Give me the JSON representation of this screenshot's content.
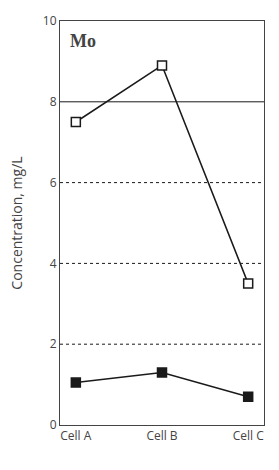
{
  "chart_data": {
    "type": "line",
    "title": "Mo",
    "ylabel": "Concentration, mg/L",
    "categories": [
      "Cell A",
      "Cell B",
      "Cell C"
    ],
    "series": [
      {
        "color": "#1a1a1a",
        "marker": "square-open",
        "values": [
          7.5,
          8.9,
          3.5
        ]
      },
      {
        "color": "#1a1a1a",
        "marker": "square",
        "values": [
          1.05,
          1.3,
          0.7
        ]
      }
    ],
    "ylim": [
      0,
      10
    ],
    "yticks": [
      0,
      2,
      4,
      6,
      8,
      10
    ],
    "grid": false,
    "hlines": [
      {
        "value": 8.0,
        "line_style": "solid",
        "color": "#1a1a1a"
      },
      {
        "value": 2.0,
        "line_style": "dotted",
        "color": "#1a1a1a"
      },
      {
        "value": 4.0,
        "line_style": "dotted",
        "color": "#1a1a1a"
      },
      {
        "value": 6.0,
        "line_style": "dotted",
        "color": "#1a1a1a"
      }
    ]
  }
}
